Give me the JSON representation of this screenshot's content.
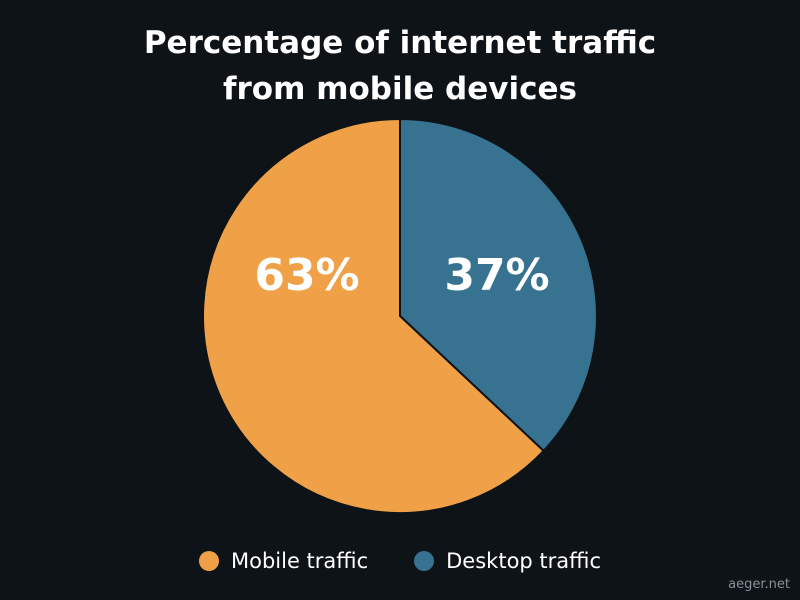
{
  "chart_data": {
    "type": "pie",
    "title_lines": [
      "Percentage of internet traffic",
      "from mobile devices"
    ],
    "slices": [
      {
        "label": "Mobile traffic",
        "value": 63,
        "display": "63%",
        "color": "#f0a046"
      },
      {
        "label": "Desktop traffic",
        "value": 37,
        "display": "37%",
        "color": "#377290"
      }
    ],
    "start": "12 o'clock",
    "direction": "clockwise, desktop first",
    "legend_position": "bottom"
  },
  "colors": {
    "background": "#0e1318",
    "slice_border": "#0e1318",
    "text": "#ffffff",
    "watermark": "#8a9099"
  },
  "watermark": "aeger.net"
}
